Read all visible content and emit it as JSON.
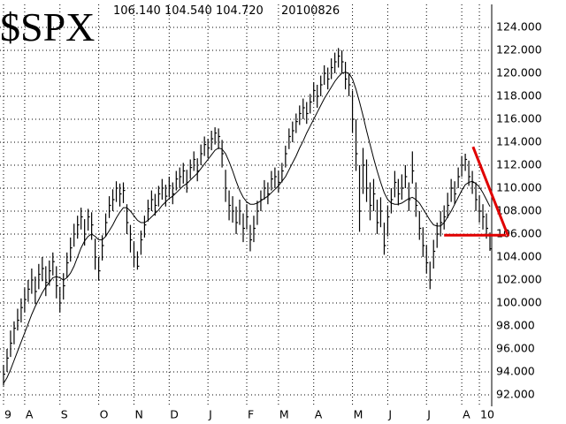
{
  "chart_data": {
    "type": "ohlc",
    "title": "$SPX",
    "header_values": [
      "106.140",
      "104.540",
      "104.720"
    ],
    "date": "20100826",
    "bar_color": "#000000",
    "ma_color": "#000000",
    "grid": true,
    "xlim": [
      -1,
      138.5
    ],
    "ylim": [
      91,
      126
    ],
    "xticks": [
      {
        "value": 0,
        "label": "9"
      },
      {
        "value": 6,
        "label": "A"
      },
      {
        "value": 16,
        "label": "S"
      },
      {
        "value": 27,
        "label": "O"
      },
      {
        "value": 37,
        "label": "N"
      },
      {
        "value": 47,
        "label": "D"
      },
      {
        "value": 58,
        "label": "J"
      },
      {
        "value": 69,
        "label": "F"
      },
      {
        "value": 78,
        "label": "M"
      },
      {
        "value": 88,
        "label": "A"
      },
      {
        "value": 99,
        "label": "M"
      },
      {
        "value": 109,
        "label": "J"
      },
      {
        "value": 120,
        "label": "J"
      },
      {
        "value": 130,
        "label": "A"
      },
      {
        "value": 135,
        "label": "10"
      }
    ],
    "yticks": [
      {
        "value": 92,
        "label": "92.000"
      },
      {
        "value": 94,
        "label": "94.000"
      },
      {
        "value": 96,
        "label": "96.000"
      },
      {
        "value": 98,
        "label": "98.000"
      },
      {
        "value": 100,
        "label": "100.000"
      },
      {
        "value": 102,
        "label": "102.000"
      },
      {
        "value": 104,
        "label": "104.000"
      },
      {
        "value": 106,
        "label": "106.000"
      },
      {
        "value": 108,
        "label": "108.000"
      },
      {
        "value": 110,
        "label": "110.000"
      },
      {
        "value": 112,
        "label": "112.000"
      },
      {
        "value": 114,
        "label": "114.000"
      },
      {
        "value": 116,
        "label": "116.000"
      },
      {
        "value": 118,
        "label": "118.000"
      },
      {
        "value": 120,
        "label": "120.000"
      },
      {
        "value": 122,
        "label": "122.000"
      },
      {
        "value": 124,
        "label": "124.000"
      }
    ],
    "high": [
      94.6,
      96.0,
      97.6,
      98.4,
      99.5,
      100.4,
      101.3,
      102.0,
      103.0,
      102.3,
      103.4,
      104.0,
      103.2,
      103.7,
      104.4,
      103.2,
      101.4,
      102.6,
      104.4,
      105.7,
      106.9,
      107.6,
      108.3,
      107.3,
      108.2,
      107.9,
      105.6,
      104.0,
      105.9,
      107.8,
      109.3,
      109.9,
      110.6,
      110.4,
      110.5,
      108.6,
      106.8,
      105.3,
      104.5,
      106.3,
      107.6,
      109.0,
      109.8,
      109.5,
      110.2,
      110.8,
      110.3,
      111.0,
      110.5,
      111.5,
      111.8,
      112.2,
      111.6,
      112.5,
      113.2,
      112.6,
      113.8,
      114.5,
      114.3,
      115.0,
      115.3,
      115.2,
      114.2,
      111.6,
      109.8,
      109.3,
      108.4,
      109.0,
      107.8,
      108.6,
      106.8,
      107.6,
      108.9,
      109.8,
      110.7,
      110.5,
      111.5,
      111.8,
      111.5,
      112.2,
      113.7,
      115.2,
      115.8,
      116.5,
      117.2,
      117.8,
      117.5,
      118.2,
      119.2,
      119.0,
      119.8,
      120.7,
      120.5,
      121.3,
      121.8,
      122.2,
      122.0,
      121.0,
      120.0,
      118.5,
      116.0,
      112.0,
      113.5,
      112.5,
      110.5,
      110.8,
      109.0,
      109.2,
      107.0,
      108.5,
      110.0,
      111.5,
      110.8,
      111.2,
      112.0,
      110.5,
      113.2,
      110.5,
      108.0,
      106.6,
      105.0,
      103.6,
      105.5,
      107.0,
      108.0,
      108.5,
      109.6,
      110.8,
      110.6,
      111.8,
      112.8,
      113.0,
      112.4,
      111.5,
      110.5,
      109.4,
      108.6,
      107.8,
      106.14
    ],
    "low": [
      92.8,
      94.0,
      95.3,
      96.4,
      97.6,
      98.3,
      99.2,
      100.1,
      100.8,
      99.9,
      101.2,
      101.9,
      100.6,
      101.5,
      102.4,
      100.4,
      99.2,
      100.3,
      102.2,
      103.6,
      104.9,
      105.6,
      106.4,
      105.0,
      106.3,
      105.5,
      102.9,
      102.0,
      103.7,
      105.8,
      107.4,
      108.0,
      108.8,
      108.4,
      108.7,
      106.0,
      104.4,
      103.1,
      102.9,
      104.2,
      105.7,
      107.1,
      108.0,
      107.6,
      108.4,
      109.0,
      108.4,
      109.2,
      108.6,
      109.8,
      110.0,
      110.4,
      109.6,
      110.8,
      111.5,
      110.6,
      112.0,
      112.8,
      112.6,
      113.3,
      113.8,
      113.4,
      111.8,
      108.8,
      107.2,
      107.0,
      106.0,
      106.8,
      105.3,
      106.4,
      104.5,
      105.3,
      106.8,
      108.0,
      109.0,
      108.6,
      109.8,
      110.0,
      109.6,
      110.5,
      111.8,
      113.4,
      114.0,
      114.8,
      115.5,
      116.0,
      115.6,
      116.5,
      117.5,
      117.0,
      118.0,
      119.0,
      118.6,
      119.5,
      120.0,
      120.5,
      120.0,
      118.6,
      118.0,
      114.8,
      111.5,
      106.2,
      109.5,
      108.8,
      107.2,
      108.0,
      106.0,
      106.6,
      104.2,
      105.8,
      107.8,
      109.2,
      108.5,
      109.0,
      110.0,
      108.0,
      110.4,
      107.5,
      105.5,
      104.0,
      102.6,
      101.2,
      103.0,
      104.8,
      105.8,
      106.4,
      107.4,
      108.8,
      108.6,
      110.0,
      111.0,
      111.5,
      110.2,
      109.5,
      108.0,
      107.0,
      106.4,
      105.6,
      104.54
    ],
    "close": [
      93.8,
      95.2,
      96.5,
      97.8,
      98.5,
      99.6,
      100.3,
      101.2,
      102.0,
      101.0,
      102.5,
      103.0,
      101.8,
      102.8,
      103.6,
      101.5,
      100.0,
      101.5,
      103.5,
      104.8,
      106.0,
      106.8,
      107.5,
      106.0,
      107.5,
      106.8,
      104.0,
      102.8,
      105.0,
      107.0,
      108.5,
      109.0,
      110.0,
      109.5,
      109.8,
      107.0,
      105.5,
      104.0,
      103.2,
      105.5,
      106.8,
      108.2,
      109.0,
      108.5,
      109.5,
      110.0,
      109.3,
      110.2,
      109.5,
      110.8,
      111.0,
      111.5,
      110.5,
      111.8,
      112.5,
      111.5,
      113.0,
      113.8,
      113.5,
      114.3,
      114.8,
      114.5,
      113.0,
      110.0,
      108.5,
      108.0,
      107.0,
      108.0,
      106.5,
      107.5,
      105.5,
      106.5,
      108.0,
      109.0,
      110.0,
      109.5,
      110.8,
      111.0,
      110.5,
      111.5,
      113.0,
      114.5,
      115.0,
      115.8,
      116.5,
      117.0,
      116.5,
      117.5,
      118.5,
      118.0,
      119.0,
      120.0,
      119.5,
      120.5,
      121.0,
      121.5,
      121.0,
      119.5,
      119.0,
      116.0,
      113.0,
      108.0,
      112.0,
      110.0,
      108.5,
      109.5,
      107.0,
      108.0,
      105.0,
      107.5,
      109.0,
      110.5,
      109.5,
      110.0,
      111.0,
      109.0,
      111.5,
      108.5,
      106.5,
      105.0,
      103.5,
      102.0,
      104.5,
      106.0,
      107.0,
      107.5,
      108.5,
      110.0,
      109.5,
      111.0,
      112.0,
      112.5,
      111.0,
      110.5,
      109.0,
      108.0,
      107.5,
      106.5,
      104.72
    ],
    "ma": [
      93.0,
      93.5,
      94.2,
      95.0,
      95.8,
      96.6,
      97.4,
      98.2,
      99.0,
      99.7,
      100.3,
      100.9,
      101.4,
      101.8,
      102.2,
      102.3,
      102.2,
      102.0,
      102.2,
      102.6,
      103.2,
      104.0,
      104.8,
      105.4,
      105.8,
      106.0,
      105.8,
      105.5,
      105.5,
      105.8,
      106.3,
      106.8,
      107.4,
      107.9,
      108.3,
      108.3,
      108.0,
      107.6,
      107.2,
      107.0,
      107.0,
      107.2,
      107.5,
      107.8,
      108.1,
      108.5,
      108.8,
      109.1,
      109.3,
      109.6,
      109.9,
      110.2,
      110.4,
      110.7,
      111.0,
      111.3,
      111.7,
      112.1,
      112.5,
      112.9,
      113.3,
      113.5,
      113.4,
      113.0,
      112.3,
      111.5,
      110.6,
      109.8,
      109.2,
      108.8,
      108.6,
      108.6,
      108.7,
      108.9,
      109.1,
      109.3,
      109.6,
      109.9,
      110.2,
      110.6,
      111.0,
      111.6,
      112.2,
      112.8,
      113.5,
      114.1,
      114.8,
      115.4,
      116.0,
      116.6,
      117.2,
      117.8,
      118.3,
      118.8,
      119.3,
      119.7,
      120.0,
      120.1,
      120.0,
      119.5,
      118.6,
      117.5,
      116.3,
      115.0,
      113.8,
      112.6,
      111.5,
      110.5,
      109.6,
      109.0,
      108.7,
      108.6,
      108.6,
      108.7,
      108.9,
      109.1,
      109.2,
      109.0,
      108.7,
      108.2,
      107.7,
      107.2,
      106.8,
      106.7,
      106.7,
      107.0,
      107.5,
      108.0,
      108.6,
      109.2,
      109.8,
      110.3,
      110.5,
      110.6,
      110.4,
      110.1,
      109.6,
      109.0,
      108.4
    ],
    "trendlines": [
      {
        "x": [
          133.2,
          143.2
        ],
        "y": [
          113.6,
          105.8
        ],
        "color": "#e00000"
      },
      {
        "x": [
          125,
          142.5
        ],
        "y": [
          105.9,
          105.9
        ],
        "color": "#e00000"
      }
    ]
  }
}
